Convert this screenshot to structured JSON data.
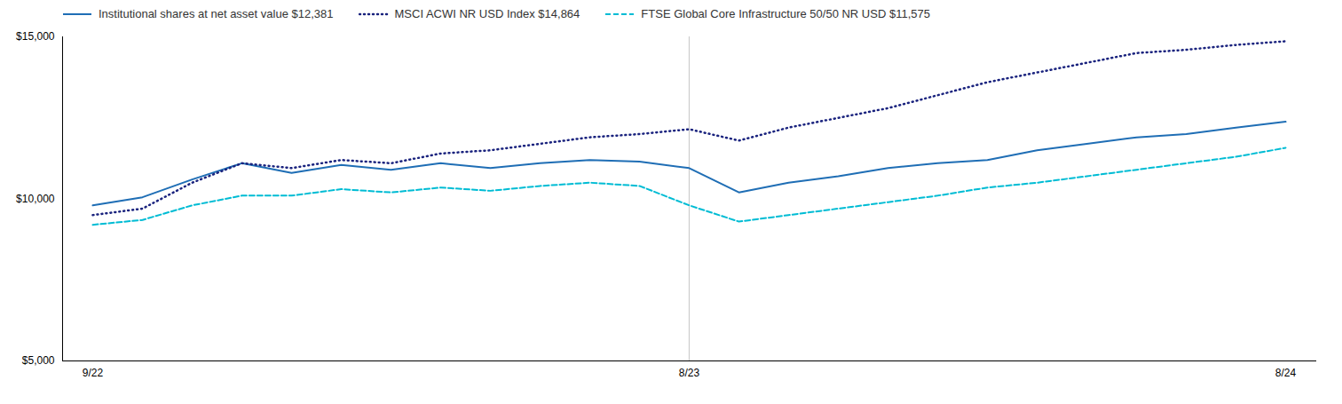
{
  "chart_data": {
    "type": "line",
    "categories": [
      "9/22",
      null,
      null,
      null,
      null,
      null,
      null,
      null,
      null,
      null,
      null,
      null,
      "8/23",
      null,
      null,
      null,
      null,
      null,
      null,
      null,
      null,
      null,
      null,
      null,
      "8/24"
    ],
    "series": [
      {
        "name": "Institutional shares at net asset value $12,381",
        "color": "#1f6eb5",
        "line_style": "solid",
        "values": [
          9800,
          10050,
          10600,
          11100,
          10800,
          11050,
          10900,
          11100,
          10950,
          11100,
          11200,
          11150,
          10950,
          10200,
          10500,
          10700,
          10950,
          11100,
          11200,
          11500,
          11700,
          11900,
          12000,
          12200,
          12381
        ]
      },
      {
        "name": "MSCI ACWI NR USD Index $14,864",
        "color": "#1a237e",
        "line_style": "dotted",
        "values": [
          9500,
          9700,
          10500,
          11100,
          10950,
          11200,
          11100,
          11400,
          11500,
          11700,
          11900,
          12000,
          12150,
          11800,
          12200,
          12500,
          12800,
          13200,
          13600,
          13900,
          14200,
          14500,
          14600,
          14750,
          14864
        ]
      },
      {
        "name": "FTSE Global Core Infrastructure 50/50 NR USD $11,575",
        "color": "#00bcd4",
        "line_style": "dashed",
        "values": [
          9200,
          9350,
          9800,
          10100,
          10100,
          10300,
          10200,
          10350,
          10250,
          10400,
          10500,
          10400,
          9800,
          9300,
          9500,
          9700,
          9900,
          10100,
          10350,
          10500,
          10700,
          10900,
          11100,
          11300,
          11575
        ]
      }
    ],
    "vline_x": "8/23",
    "ylim": [
      5000,
      15000
    ],
    "yticks": [
      {
        "value": 5000,
        "label": "$5,000"
      },
      {
        "value": 10000,
        "label": "$10,000"
      },
      {
        "value": 15000,
        "label": "$15,000"
      }
    ],
    "grid": false,
    "legend": "top"
  }
}
